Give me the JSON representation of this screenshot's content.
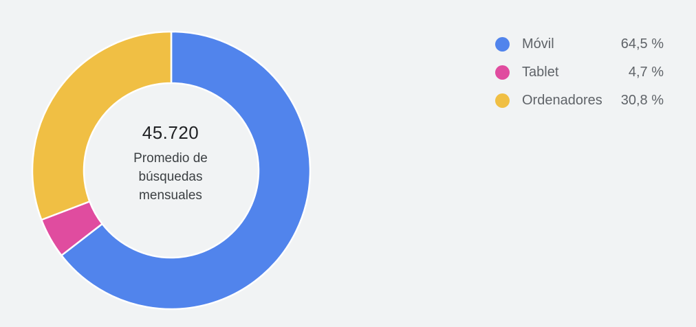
{
  "chart_data": {
    "type": "pie",
    "variant": "donut",
    "center": {
      "value": "45.720",
      "caption": "Promedio de búsquedas mensuales",
      "caption_lines": [
        "Promedio de",
        "búsquedas",
        "mensuales"
      ]
    },
    "series": [
      {
        "name": "Móvil",
        "value": 64.5,
        "label": "64,5 %",
        "color": "#5184ec"
      },
      {
        "name": "Tablet",
        "value": 4.7,
        "label": "4,7 %",
        "color": "#e04c9f"
      },
      {
        "name": "Ordenadores",
        "value": 30.8,
        "label": "30,8 %",
        "color": "#f0bf44"
      }
    ],
    "legend_placement": "top-right"
  }
}
